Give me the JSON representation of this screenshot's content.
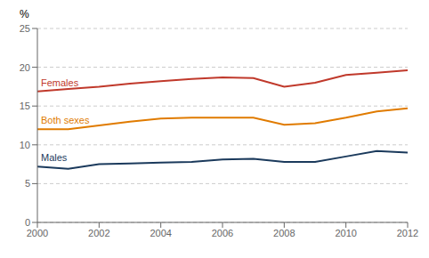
{
  "chart_data": {
    "type": "line",
    "ylabel": "%",
    "x": [
      2000,
      2001,
      2002,
      2003,
      2004,
      2005,
      2006,
      2007,
      2008,
      2009,
      2010,
      2011,
      2012
    ],
    "series": [
      {
        "name": "Females",
        "color": "#c0392b",
        "values": [
          16.9,
          17.2,
          17.5,
          17.9,
          18.2,
          18.5,
          18.7,
          18.6,
          17.5,
          18.0,
          19.0,
          19.3,
          19.6
        ]
      },
      {
        "name": "Both sexes",
        "color": "#e07b00",
        "values": [
          12.0,
          12.0,
          12.5,
          13.0,
          13.4,
          13.5,
          13.5,
          13.5,
          12.6,
          12.8,
          13.5,
          14.3,
          14.7
        ]
      },
      {
        "name": "Males",
        "color": "#1b3a5c",
        "values": [
          7.2,
          6.9,
          7.5,
          7.6,
          7.7,
          7.8,
          8.1,
          8.2,
          7.8,
          7.8,
          8.5,
          9.2,
          9.0
        ]
      }
    ],
    "xlim": [
      2000,
      2012
    ],
    "xticks": [
      2000,
      2002,
      2004,
      2006,
      2008,
      2010,
      2012
    ],
    "ylim": [
      0,
      25
    ],
    "yticks": [
      0,
      5,
      10,
      15,
      20,
      25
    ],
    "grid": true
  }
}
